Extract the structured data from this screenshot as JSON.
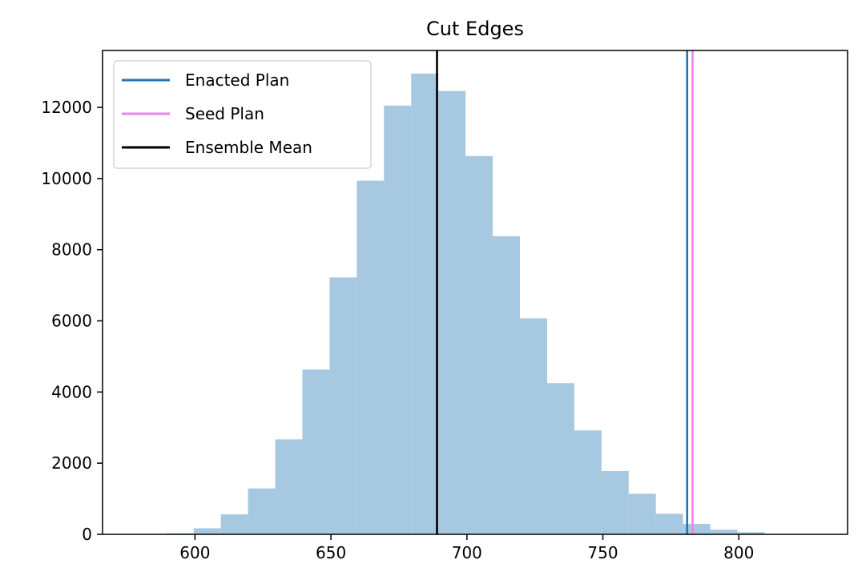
{
  "chart_data": {
    "type": "bar",
    "title": "Cut Edges",
    "xlabel": "",
    "ylabel": "",
    "xlim": [
      566,
      840
    ],
    "ylim": [
      0,
      13600
    ],
    "xticks": [
      600,
      650,
      700,
      750,
      800
    ],
    "yticks": [
      0,
      2000,
      4000,
      6000,
      8000,
      10000,
      12000
    ],
    "histogram": {
      "color": "#a6c8e0",
      "bins": [
        {
          "x0": 589.5,
          "x1": 599.5,
          "count": 30
        },
        {
          "x0": 599.5,
          "x1": 609.5,
          "count": 170
        },
        {
          "x0": 609.5,
          "x1": 619.5,
          "count": 560
        },
        {
          "x0": 619.5,
          "x1": 629.5,
          "count": 1290
        },
        {
          "x0": 629.5,
          "x1": 639.5,
          "count": 2670
        },
        {
          "x0": 639.5,
          "x1": 649.5,
          "count": 4630
        },
        {
          "x0": 649.5,
          "x1": 659.5,
          "count": 7220
        },
        {
          "x0": 659.5,
          "x1": 669.5,
          "count": 9940
        },
        {
          "x0": 669.5,
          "x1": 679.5,
          "count": 12050
        },
        {
          "x0": 679.5,
          "x1": 689.5,
          "count": 12950
        },
        {
          "x0": 689.5,
          "x1": 699.5,
          "count": 12460
        },
        {
          "x0": 699.5,
          "x1": 709.5,
          "count": 10630
        },
        {
          "x0": 709.5,
          "x1": 719.5,
          "count": 8380
        },
        {
          "x0": 719.5,
          "x1": 729.5,
          "count": 6070
        },
        {
          "x0": 729.5,
          "x1": 739.5,
          "count": 4250
        },
        {
          "x0": 739.5,
          "x1": 749.5,
          "count": 2920
        },
        {
          "x0": 749.5,
          "x1": 759.5,
          "count": 1780
        },
        {
          "x0": 759.5,
          "x1": 769.5,
          "count": 1140
        },
        {
          "x0": 769.5,
          "x1": 779.5,
          "count": 580
        },
        {
          "x0": 779.5,
          "x1": 789.5,
          "count": 290
        },
        {
          "x0": 789.5,
          "x1": 799.5,
          "count": 130
        },
        {
          "x0": 799.5,
          "x1": 809.5,
          "count": 60
        }
      ]
    },
    "vlines": [
      {
        "name": "Enacted Plan",
        "x": 781,
        "color": "#1f77b4"
      },
      {
        "name": "Seed Plan",
        "x": 783,
        "color": "#ee82ee"
      },
      {
        "name": "Ensemble Mean",
        "x": 689,
        "color": "#000000"
      }
    ],
    "legend": {
      "position": "top-left",
      "entries": [
        {
          "label": "Enacted Plan",
          "color": "#1f77b4"
        },
        {
          "label": "Seed Plan",
          "color": "#ee82ee"
        },
        {
          "label": "Ensemble Mean",
          "color": "#000000"
        }
      ]
    },
    "grid": false
  }
}
